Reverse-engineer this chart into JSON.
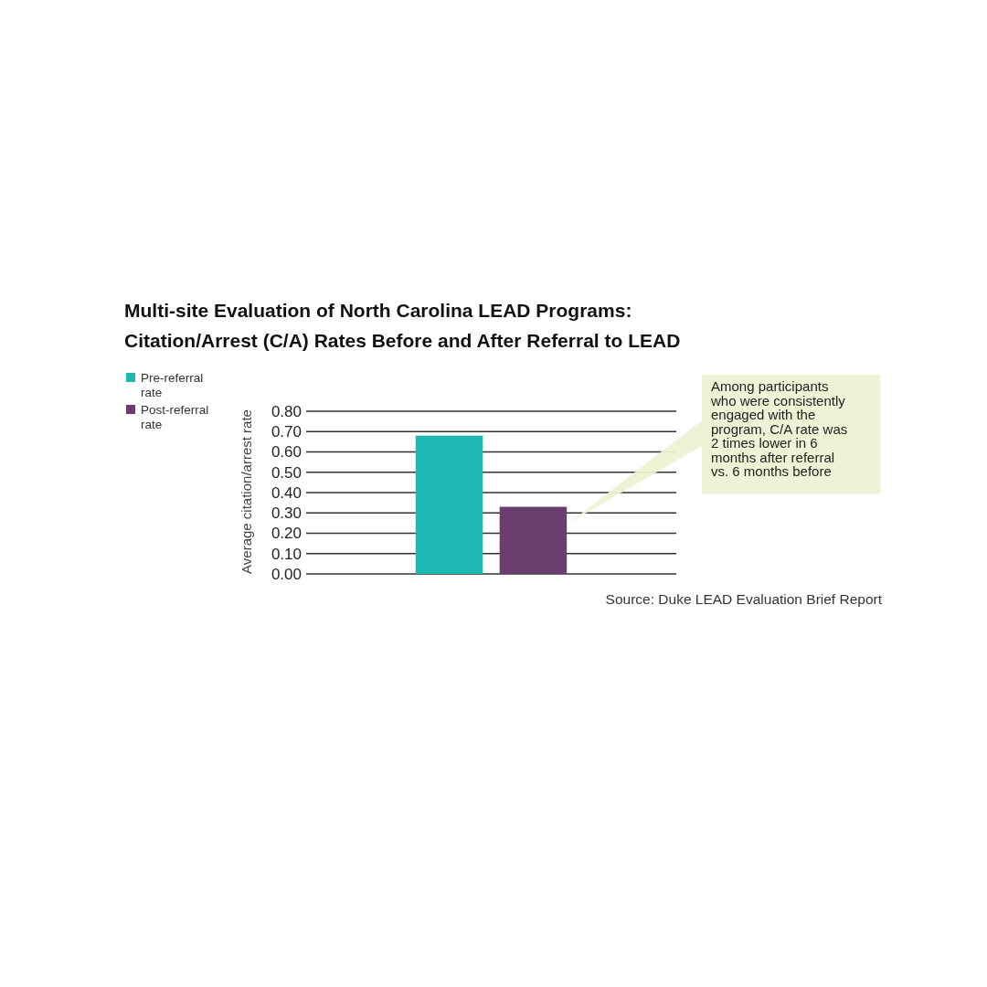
{
  "chart_data": {
    "type": "bar",
    "title": "Multi-site Evaluation of North Carolina LEAD Programs: Citation/Arrest (C/A) Rates Before and After Referral to LEAD",
    "ylabel": "Average citation/arrest rate",
    "categories": [
      null
    ],
    "series": [
      {
        "name": "Pre-referral rate",
        "color": "#1eb8b3",
        "values": [
          0.68
        ]
      },
      {
        "name": "Post-referral rate",
        "color": "#6a3f70",
        "values": [
          0.33
        ]
      }
    ],
    "ylim": [
      0,
      0.8
    ],
    "yticks": [
      {
        "value": 0,
        "label": "0.00"
      },
      {
        "value": 0.1,
        "label": "0.10"
      },
      {
        "value": 0.2,
        "label": "0.20"
      },
      {
        "value": 0.3,
        "label": "0.30"
      },
      {
        "value": 0.4,
        "label": "0.40"
      },
      {
        "value": 0.5,
        "label": "0.50"
      },
      {
        "value": 0.6,
        "label": "0.60"
      },
      {
        "value": 0.7,
        "label": "0.70"
      },
      {
        "value": 0.8,
        "label": "0.80"
      }
    ],
    "grid": "y",
    "legend": "top left",
    "tick_labels": "y",
    "annotations": [
      "Among participants who were consistently engaged with the program, C/A rate was 2 times lower in 6 months after referral vs. 6 months before",
      "Source: Duke LEAD Evaluation Brief Report"
    ]
  }
}
